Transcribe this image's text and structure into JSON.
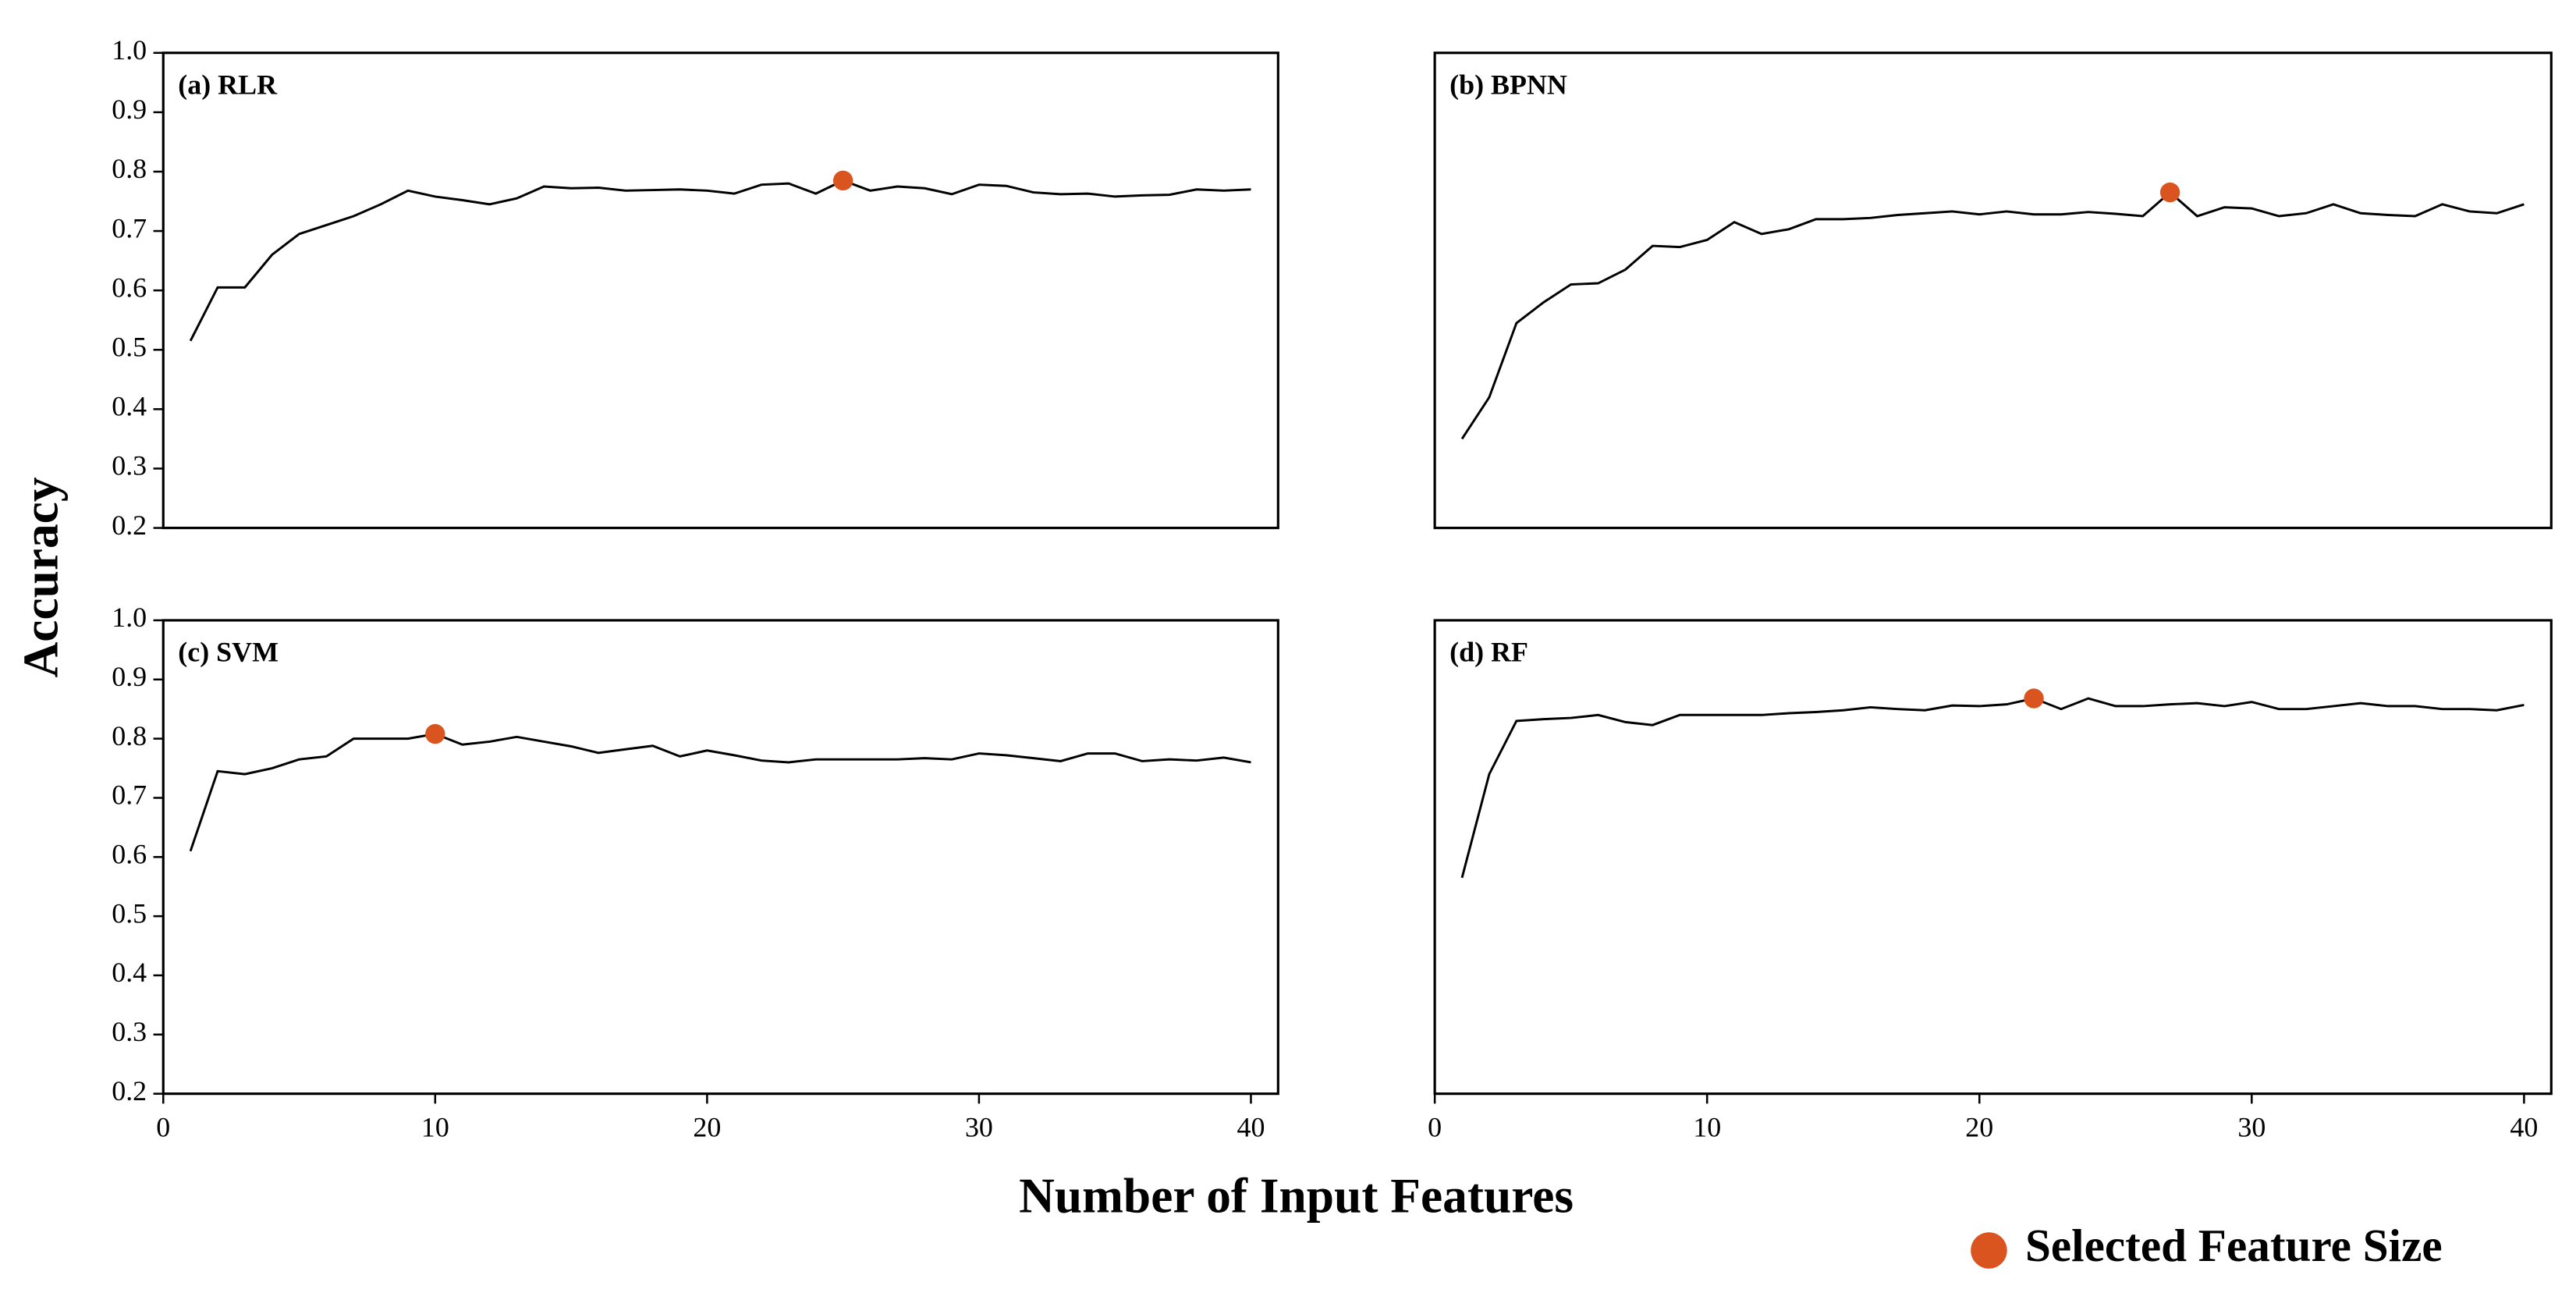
{
  "figure": {
    "ylabel": "Accuracy",
    "xlabel": "Number of Input Features",
    "legend": {
      "label": "Selected Feature Size",
      "color": "#d9541e"
    }
  },
  "chart_data": [
    {
      "type": "line",
      "title": "(a) RLR",
      "color": "#000000",
      "x": [
        1,
        2,
        3,
        4,
        5,
        6,
        7,
        8,
        9,
        10,
        11,
        12,
        13,
        14,
        15,
        16,
        17,
        18,
        19,
        20,
        21,
        22,
        23,
        24,
        25,
        26,
        27,
        28,
        29,
        30,
        31,
        32,
        33,
        34,
        35,
        36,
        37,
        38,
        39,
        40
      ],
      "values": [
        0.515,
        0.605,
        0.605,
        0.66,
        0.695,
        0.71,
        0.725,
        0.745,
        0.768,
        0.758,
        0.752,
        0.745,
        0.755,
        0.775,
        0.772,
        0.773,
        0.768,
        0.769,
        0.77,
        0.768,
        0.763,
        0.778,
        0.78,
        0.763,
        0.785,
        0.768,
        0.775,
        0.772,
        0.762,
        0.778,
        0.776,
        0.765,
        0.762,
        0.763,
        0.758,
        0.76,
        0.761,
        0.77,
        0.768,
        0.77
      ],
      "selected": {
        "x": 25,
        "value": 0.785,
        "color": "#d9541e"
      },
      "xlim": [
        0,
        41
      ],
      "ylim": [
        0.2,
        1.0
      ],
      "yticks": [
        0.2,
        0.3,
        0.4,
        0.5,
        0.6,
        0.7,
        0.8,
        0.9,
        {
          "value": 1.0,
          "label": "1.0"
        }
      ]
    },
    {
      "type": "line",
      "title": "(b) BPNN",
      "color": "#000000",
      "x": [
        1,
        2,
        3,
        4,
        5,
        6,
        7,
        8,
        9,
        10,
        11,
        12,
        13,
        14,
        15,
        16,
        17,
        18,
        19,
        20,
        21,
        22,
        23,
        24,
        25,
        26,
        27,
        28,
        29,
        30,
        31,
        32,
        33,
        34,
        35,
        36,
        37,
        38,
        39,
        40
      ],
      "values": [
        0.35,
        0.42,
        0.545,
        0.58,
        0.61,
        0.612,
        0.635,
        0.675,
        0.673,
        0.685,
        0.715,
        0.695,
        0.703,
        0.72,
        0.72,
        0.722,
        0.727,
        0.73,
        0.733,
        0.728,
        0.733,
        0.728,
        0.728,
        0.732,
        0.729,
        0.725,
        0.765,
        0.725,
        0.74,
        0.738,
        0.725,
        0.73,
        0.745,
        0.73,
        0.727,
        0.725,
        0.745,
        0.733,
        0.73,
        0.745
      ],
      "selected": {
        "x": 27,
        "value": 0.765,
        "color": "#d9541e"
      },
      "xlim": [
        0,
        41
      ],
      "ylim": [
        0.2,
        1.0
      ]
    },
    {
      "type": "line",
      "title": "(c) SVM",
      "color": "#000000",
      "x": [
        1,
        2,
        3,
        4,
        5,
        6,
        7,
        8,
        9,
        10,
        11,
        12,
        13,
        14,
        15,
        16,
        17,
        18,
        19,
        20,
        21,
        22,
        23,
        24,
        25,
        26,
        27,
        28,
        29,
        30,
        31,
        32,
        33,
        34,
        35,
        36,
        37,
        38,
        39,
        40
      ],
      "values": [
        0.61,
        0.745,
        0.74,
        0.75,
        0.765,
        0.77,
        0.8,
        0.8,
        0.8,
        0.808,
        0.79,
        0.795,
        0.803,
        0.795,
        0.787,
        0.776,
        0.782,
        0.788,
        0.77,
        0.78,
        0.772,
        0.763,
        0.76,
        0.765,
        0.765,
        0.765,
        0.765,
        0.767,
        0.765,
        0.775,
        0.772,
        0.767,
        0.762,
        0.775,
        0.775,
        0.762,
        0.765,
        0.763,
        0.768,
        0.76
      ],
      "selected": {
        "x": 10,
        "value": 0.808,
        "color": "#d9541e"
      },
      "xlim": [
        0,
        41
      ],
      "ylim": [
        0.2,
        1.0
      ],
      "xticks": [
        0,
        10,
        20,
        30,
        40
      ],
      "yticks": [
        0.2,
        0.3,
        0.4,
        0.5,
        0.6,
        0.7,
        0.8,
        0.9,
        {
          "value": 1.0,
          "label": "1.0"
        }
      ]
    },
    {
      "type": "line",
      "title": "(d) RF",
      "color": "#000000",
      "x": [
        1,
        2,
        3,
        4,
        5,
        6,
        7,
        8,
        9,
        10,
        11,
        12,
        13,
        14,
        15,
        16,
        17,
        18,
        19,
        20,
        21,
        22,
        23,
        24,
        25,
        26,
        27,
        28,
        29,
        30,
        31,
        32,
        33,
        34,
        35,
        36,
        37,
        38,
        39,
        40
      ],
      "values": [
        0.565,
        0.74,
        0.83,
        0.833,
        0.835,
        0.84,
        0.828,
        0.823,
        0.84,
        0.84,
        0.84,
        0.84,
        0.843,
        0.845,
        0.848,
        0.853,
        0.85,
        0.848,
        0.856,
        0.855,
        0.858,
        0.868,
        0.85,
        0.868,
        0.855,
        0.855,
        0.858,
        0.86,
        0.855,
        0.862,
        0.85,
        0.85,
        0.855,
        0.86,
        0.855,
        0.855,
        0.85,
        0.85,
        0.848,
        0.857
      ],
      "selected": {
        "x": 22,
        "value": 0.868,
        "color": "#d9541e"
      },
      "xlim": [
        0,
        41
      ],
      "ylim": [
        0.2,
        1.0
      ],
      "xticks": [
        0,
        10,
        20,
        30,
        40
      ]
    }
  ]
}
